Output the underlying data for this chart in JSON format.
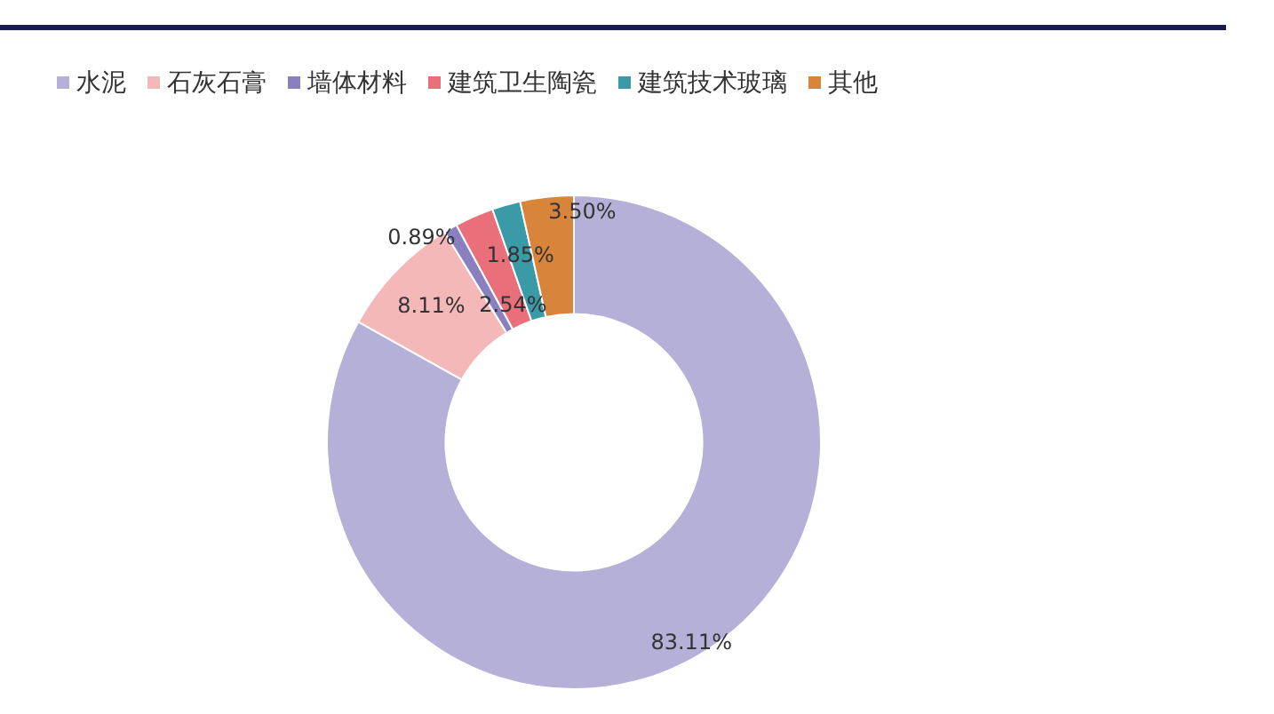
{
  "chart_data": {
    "type": "donut",
    "categories": [
      "水泥",
      "石灰石膏",
      "墙体材料",
      "建筑卫生陶瓷",
      "建筑技术玻璃",
      "其他"
    ],
    "values": [
      83.11,
      8.11,
      0.89,
      2.54,
      1.85,
      3.5
    ],
    "colors": [
      "#b4b0d8",
      "#f4b8b8",
      "#8a7fbf",
      "#e9707a",
      "#3b9aa8",
      "#d8843a"
    ],
    "value_labels": [
      "83.11%",
      "8.11%",
      "0.89%",
      "2.54%",
      "1.85%",
      "3.50%"
    ],
    "legend": "top"
  }
}
